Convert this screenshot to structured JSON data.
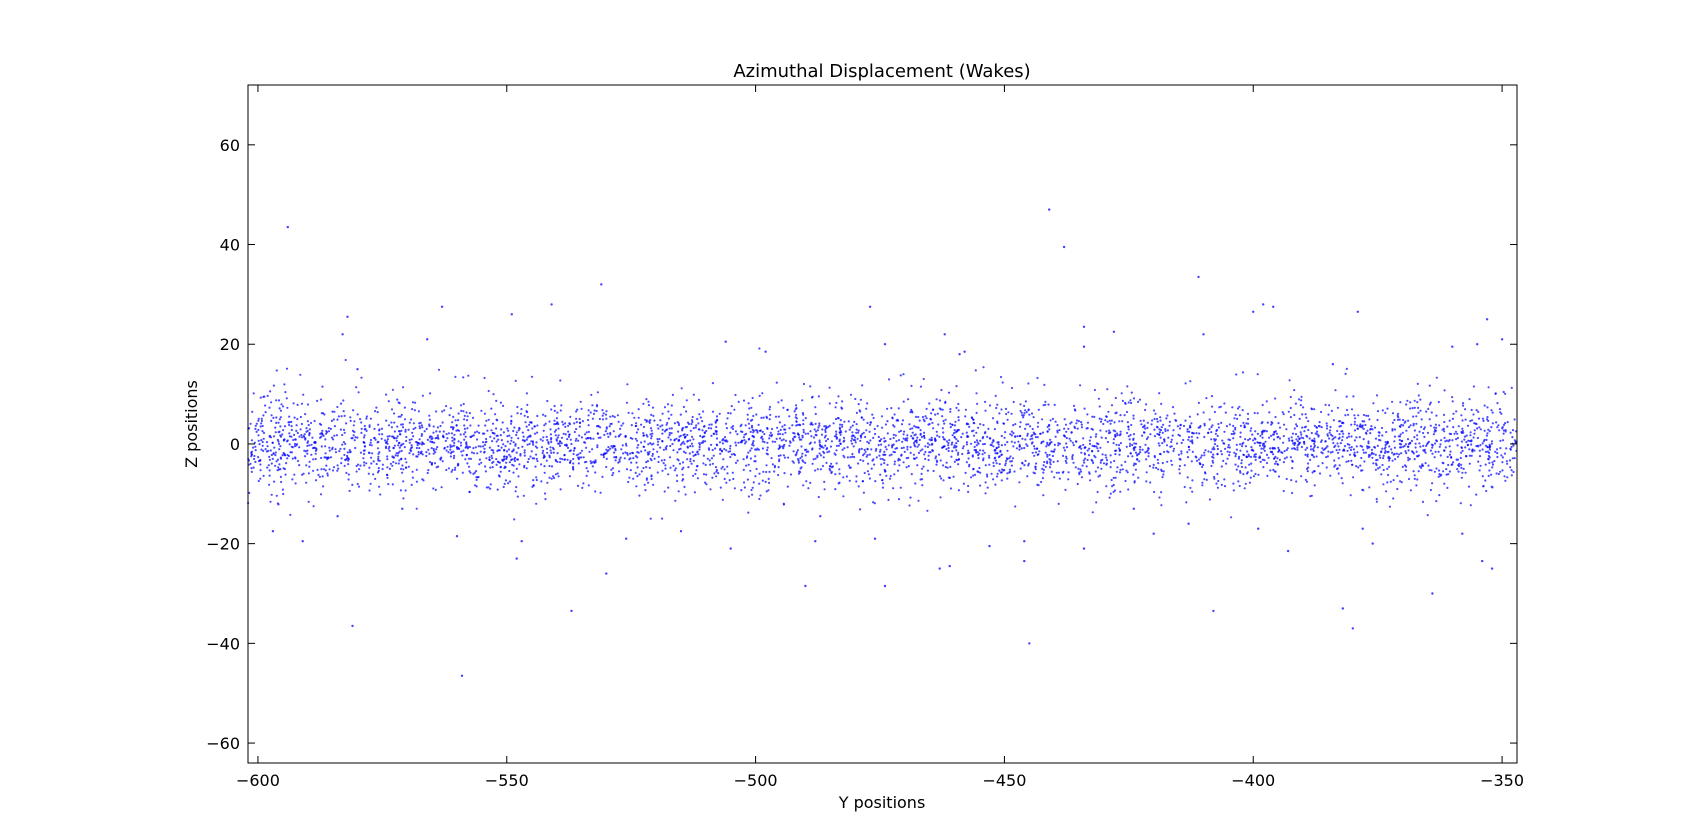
{
  "chart_data": {
    "type": "scatter",
    "title": "Azimuthal Displacement (Wakes)",
    "xlabel": "Y positions",
    "ylabel": "Z positions",
    "xlim": [
      -602,
      -347
    ],
    "ylim": [
      -64,
      72
    ],
    "xticks": [
      -600,
      -550,
      -500,
      -450,
      -400,
      -350
    ],
    "yticks": [
      -60,
      -40,
      -20,
      0,
      20,
      40,
      60
    ],
    "xtick_labels": [
      "−600",
      "−550",
      "−500",
      "−450",
      "−400",
      "−350"
    ],
    "ytick_labels": [
      "−60",
      "−40",
      "−20",
      "0",
      "20",
      "40",
      "60"
    ],
    "grid": false,
    "legend": "none",
    "marker_color": "#0000ff",
    "bulk": {
      "description_count": 4500,
      "x_range": [
        -602,
        -347
      ],
      "center": 0,
      "sigma": 4.5
    },
    "series": [
      {
        "points": [
          [
            -594,
            43.5
          ],
          [
            -441,
            47
          ],
          [
            -438,
            39.5
          ],
          [
            -411,
            33.5
          ],
          [
            -398,
            28
          ],
          [
            -396,
            27.5
          ],
          [
            -400,
            26.5
          ],
          [
            -379,
            26.5
          ],
          [
            -353,
            25
          ],
          [
            -477,
            27.5
          ],
          [
            -563,
            27.5
          ],
          [
            -541,
            28
          ],
          [
            -549,
            26
          ],
          [
            -531,
            32
          ],
          [
            -582,
            25.5
          ],
          [
            -580,
            15
          ],
          [
            -583,
            22
          ],
          [
            -566,
            21
          ],
          [
            -474,
            20
          ],
          [
            -506,
            20.5
          ],
          [
            -434,
            23.5
          ],
          [
            -428,
            22.5
          ],
          [
            -410,
            22
          ],
          [
            -350,
            21
          ],
          [
            -355,
            20
          ],
          [
            -498,
            18.5
          ],
          [
            -459,
            18
          ],
          [
            -462,
            22
          ],
          [
            -384,
            16
          ],
          [
            -434,
            19.5
          ],
          [
            -458,
            18.5
          ],
          [
            -360,
            19.5
          ],
          [
            -581,
            -36.5
          ],
          [
            -559,
            -46.5
          ],
          [
            -445,
            -40
          ],
          [
            -537,
            -33.5
          ],
          [
            -408,
            -33.5
          ],
          [
            -382,
            -33
          ],
          [
            -364,
            -30
          ],
          [
            -380,
            -37
          ],
          [
            -548,
            -23
          ],
          [
            -530,
            -26
          ],
          [
            -490,
            -28.5
          ],
          [
            -474,
            -28.5
          ],
          [
            -463,
            -25
          ],
          [
            -461,
            -24.5
          ],
          [
            -446,
            -23.5
          ],
          [
            -352,
            -25
          ],
          [
            -354,
            -23.5
          ],
          [
            -434,
            -21
          ],
          [
            -505,
            -21
          ],
          [
            -547,
            -19.5
          ],
          [
            -591,
            -19.5
          ],
          [
            -560,
            -18.5
          ],
          [
            -488,
            -19.5
          ],
          [
            -476,
            -19
          ],
          [
            -446,
            -19.5
          ],
          [
            -393,
            -21.5
          ],
          [
            -376,
            -20
          ],
          [
            -378,
            -17
          ],
          [
            -358,
            -18
          ],
          [
            -526,
            -19
          ],
          [
            -584,
            -14.5
          ],
          [
            -597,
            -17.5
          ],
          [
            -453,
            -20.5
          ],
          [
            -420,
            -18
          ],
          [
            -413,
            -16
          ],
          [
            -571,
            -13
          ],
          [
            -515,
            -17.5
          ],
          [
            -487,
            -14.5
          ],
          [
            -424,
            -13
          ],
          [
            -399,
            -17
          ]
        ]
      }
    ]
  }
}
